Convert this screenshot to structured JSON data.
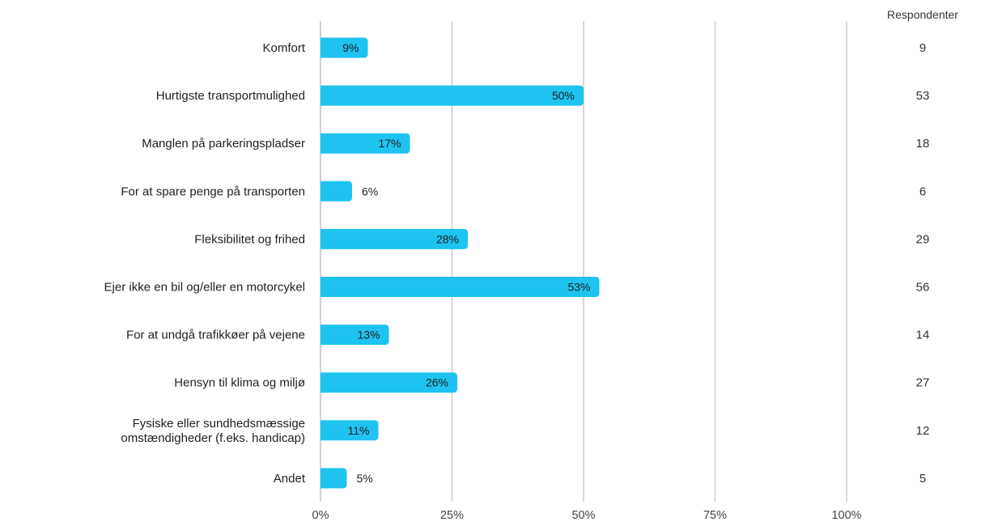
{
  "chart_data": {
    "type": "bar",
    "orientation": "horizontal",
    "categories": [
      [
        "Komfort"
      ],
      [
        "Hurtigste transportmulighed"
      ],
      [
        "Manglen på parkeringspladser"
      ],
      [
        "For at spare penge på transporten"
      ],
      [
        "Fleksibilitet og frihed"
      ],
      [
        "Ejer ikke en bil og/eller en motorcykel"
      ],
      [
        "For at undgå trafikkøer på vejene"
      ],
      [
        "Hensyn til klima og miljø"
      ],
      [
        "Fysiske eller sundhedsmæssige",
        "omstændigheder (f.eks. handicap)"
      ],
      [
        "Andet"
      ]
    ],
    "values": [
      9,
      50,
      17,
      6,
      28,
      53,
      13,
      26,
      11,
      5
    ],
    "value_labels": [
      "9%",
      "50%",
      "17%",
      "6%",
      "28%",
      "53%",
      "13%",
      "26%",
      "11%",
      "5%"
    ],
    "respondents_header": "Respondenter",
    "respondents": [
      "9",
      "53",
      "18",
      "6",
      "29",
      "56",
      "14",
      "27",
      "12",
      "5"
    ],
    "xlim": [
      0,
      100
    ],
    "xticks": [
      0,
      25,
      50,
      75,
      100
    ],
    "xtick_labels": [
      "0%",
      "25%",
      "50%",
      "75%",
      "100%"
    ],
    "grid": true,
    "colors": {
      "bar": "#1ec3f0",
      "grid": "#c8c8c8",
      "text": "#1f1f1f"
    }
  }
}
